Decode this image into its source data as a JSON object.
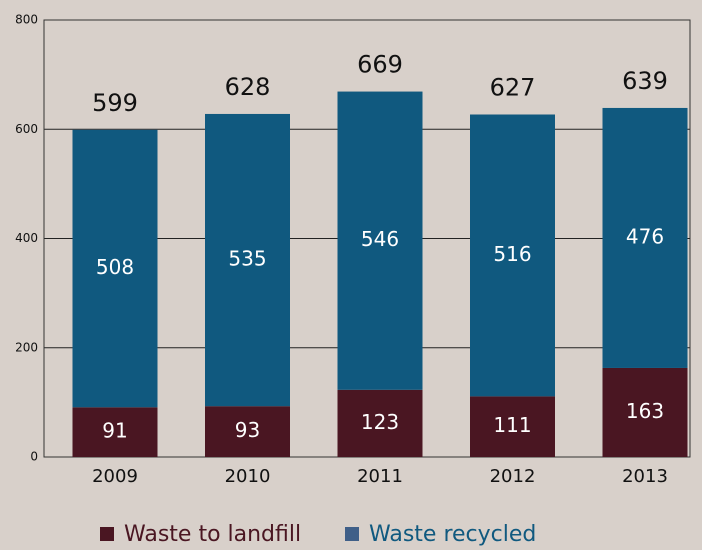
{
  "chart_data": {
    "type": "stacked_bar",
    "categories": [
      "2009",
      "2010",
      "2011",
      "2012",
      "2013"
    ],
    "series": [
      {
        "name": "Waste to landfill",
        "color": "#4a1622",
        "values": [
          91,
          93,
          123,
          111,
          163
        ]
      },
      {
        "name": "Waste recycled",
        "color": "#10597f",
        "values": [
          508,
          535,
          546,
          516,
          476
        ]
      }
    ],
    "totals": [
      599,
      628,
      669,
      627,
      639
    ],
    "legend_colors": [
      "#4a1622",
      "#3f5f88"
    ],
    "ylim": [
      0,
      800
    ],
    "yticks": [
      0,
      200,
      400,
      600,
      800
    ],
    "grid": true
  }
}
